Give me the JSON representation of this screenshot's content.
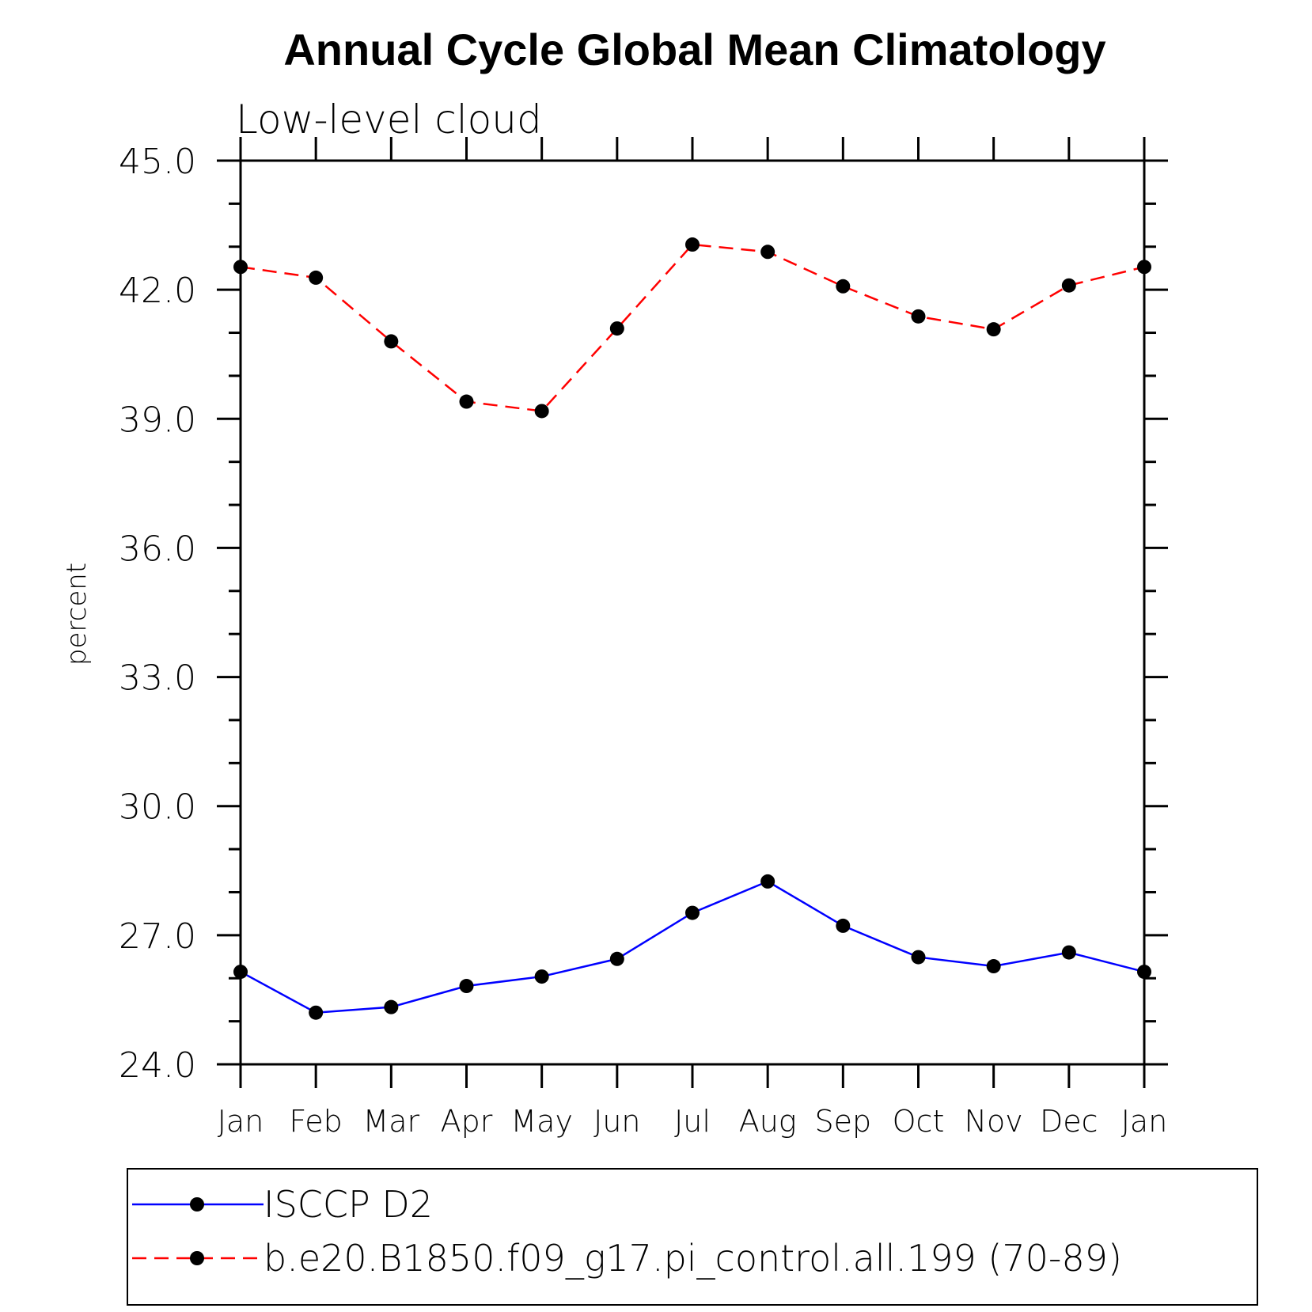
{
  "chart_data": {
    "type": "line",
    "title": "Annual Cycle Global Mean Climatology",
    "subtitle": "Low-level cloud",
    "ylabel": "percent",
    "xlabel": "",
    "categories": [
      "Jan",
      "Feb",
      "Mar",
      "Apr",
      "May",
      "Jun",
      "Jul",
      "Aug",
      "Sep",
      "Oct",
      "Nov",
      "Dec",
      "Jan"
    ],
    "ylim": [
      24.0,
      45.0
    ],
    "yticks": [
      "24.0",
      "27.0",
      "30.0",
      "33.0",
      "36.0",
      "39.0",
      "42.0",
      "45.0"
    ],
    "ytick_values": [
      24,
      27,
      30,
      33,
      36,
      39,
      42,
      45
    ],
    "grid": false,
    "legend_position": "bottom",
    "series": [
      {
        "name": "ISCCP D2",
        "color": "#0000ff",
        "line_style": "solid",
        "marker": "filled-circle",
        "values": [
          26.15,
          25.2,
          25.33,
          25.82,
          26.04,
          26.45,
          27.52,
          28.25,
          27.22,
          26.49,
          26.28,
          26.6,
          26.15
        ]
      },
      {
        "name": "b.e20.B1850.f09_g17.pi_control.all.199 (70-89)",
        "color": "#ff0000",
        "line_style": "dashed",
        "marker": "filled-circle",
        "values": [
          42.53,
          42.28,
          40.8,
          39.4,
          39.18,
          41.1,
          43.05,
          42.88,
          42.08,
          41.38,
          41.08,
          42.1,
          42.53
        ]
      }
    ]
  }
}
